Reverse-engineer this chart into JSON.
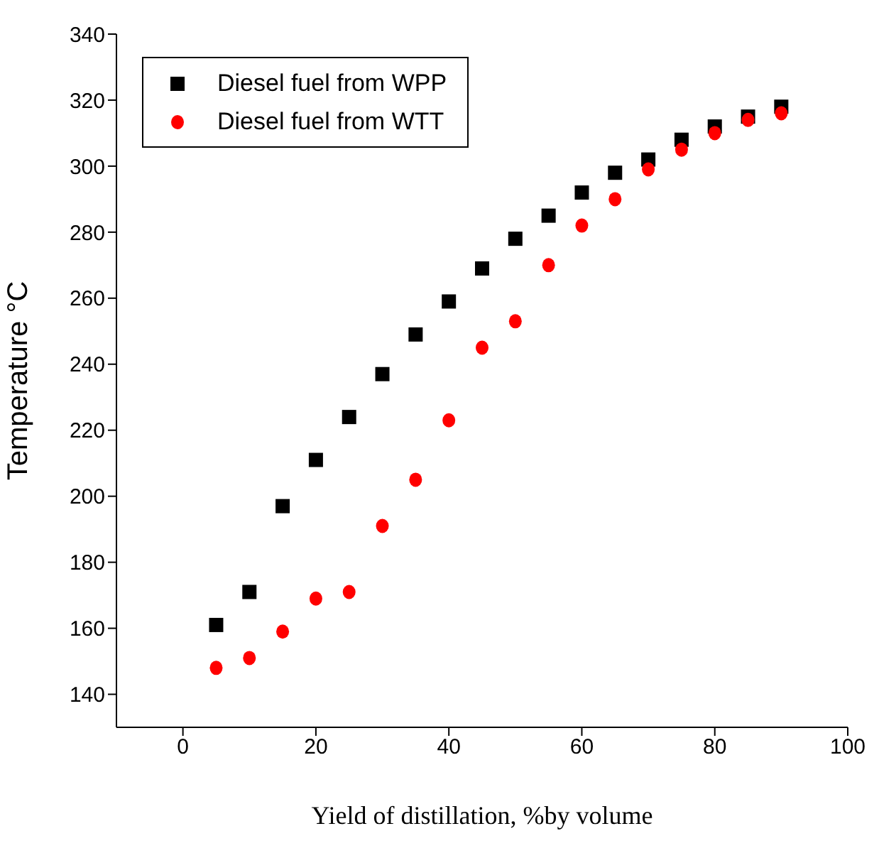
{
  "chart_data": {
    "type": "scatter",
    "xlabel": "Yield of distillation, %by volume",
    "ylabel": "Temperature °C",
    "xlim": [
      -10,
      100
    ],
    "xticks": [
      0,
      20,
      40,
      60,
      80,
      100
    ],
    "ylim": [
      130,
      340
    ],
    "yticks": [
      140,
      160,
      180,
      200,
      220,
      240,
      260,
      280,
      300,
      320,
      340
    ],
    "x": [
      5,
      10,
      15,
      20,
      25,
      30,
      35,
      40,
      45,
      50,
      55,
      60,
      65,
      70,
      75,
      80,
      85,
      90
    ],
    "legend": "top left",
    "grid": false,
    "series": [
      {
        "name": "Diesel fuel from WPP",
        "color": "#000000",
        "marker": "square",
        "values": [
          161,
          171,
          197,
          211,
          224,
          237,
          249,
          259,
          269,
          278,
          285,
          292,
          298,
          302,
          308,
          312,
          315,
          318
        ]
      },
      {
        "name": "Diesel fuel from WTT",
        "color": "#ff0000",
        "marker": "circle",
        "values": [
          148,
          151,
          159,
          169,
          171,
          191,
          205,
          223,
          245,
          253,
          270,
          282,
          290,
          299,
          305,
          310,
          314,
          316
        ]
      }
    ]
  }
}
